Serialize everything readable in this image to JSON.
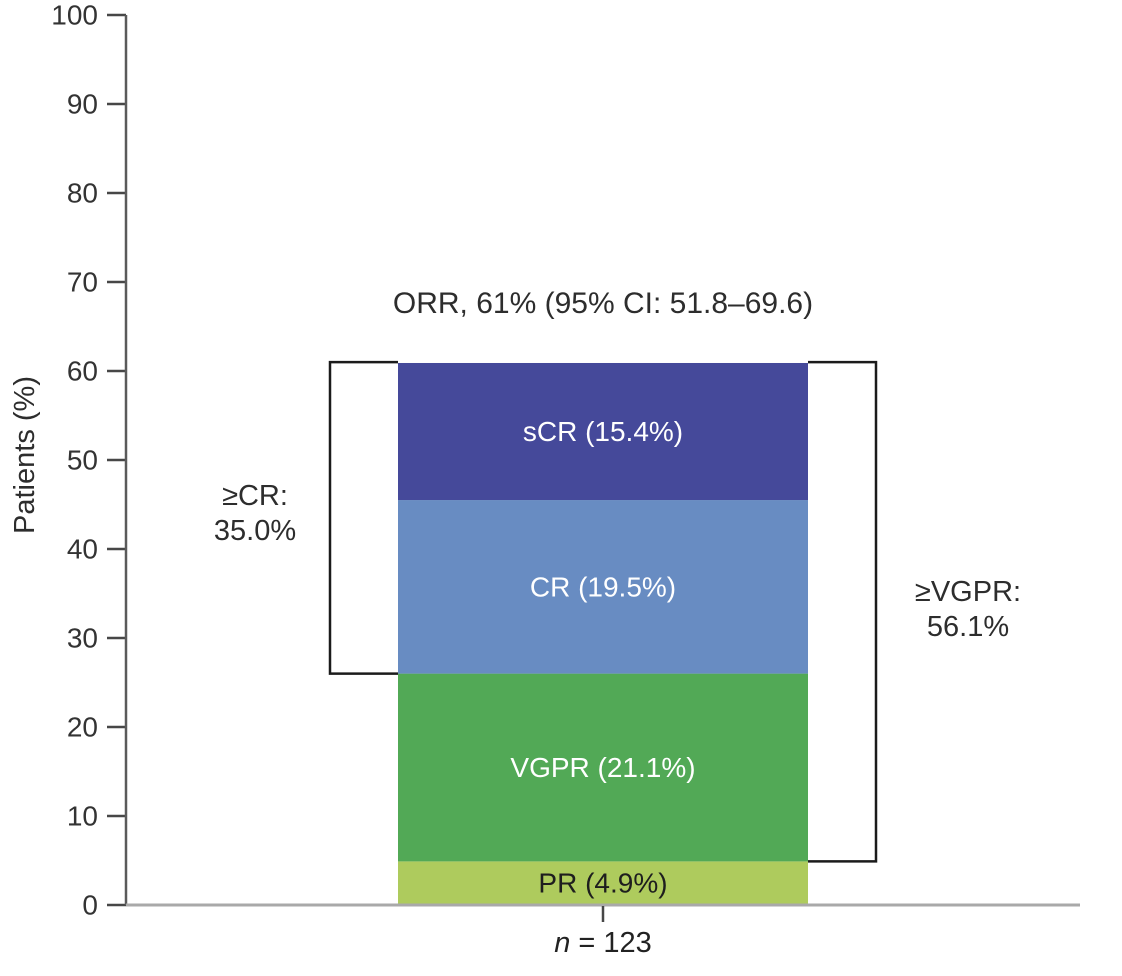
{
  "chart_data": {
    "type": "bar",
    "title": "ORR, 61% (95% CI: 51.8–69.6)",
    "ylabel": "Patients (%)",
    "ylim": [
      0,
      100
    ],
    "yticks": [
      0,
      10,
      20,
      30,
      40,
      50,
      60,
      70,
      80,
      90,
      100
    ],
    "grid": false,
    "legend": "none",
    "categories": [
      "n = 123"
    ],
    "n_label": {
      "symbol": "n",
      "equals": " = ",
      "value": "123"
    },
    "orr_total_percent": 61,
    "segments": [
      {
        "name": "PR",
        "label": "PR (4.9%)",
        "value": 4.9,
        "color": "#aecb5d",
        "label_color": "#1e1e1e"
      },
      {
        "name": "VGPR",
        "label": "VGPR (21.1%)",
        "value": 21.1,
        "color": "#52a956",
        "label_color": "#ffffff"
      },
      {
        "name": "CR",
        "label": "CR (19.5%)",
        "value": 19.5,
        "color": "#688cc2",
        "label_color": "#ffffff"
      },
      {
        "name": "sCR",
        "label": "sCR (15.4%)",
        "value": 15.4,
        "color": "#45499a",
        "label_color": "#ffffff"
      }
    ],
    "brackets": [
      {
        "name": "cr-or-better",
        "side": "left",
        "line1": "≥CR:",
        "line2": "35.0%",
        "from": 26.0,
        "to": 61.0
      },
      {
        "name": "vgpr-or-better",
        "side": "right",
        "line1": "≥VGPR:",
        "line2": "56.1%",
        "from": 4.9,
        "to": 61.0
      }
    ]
  }
}
